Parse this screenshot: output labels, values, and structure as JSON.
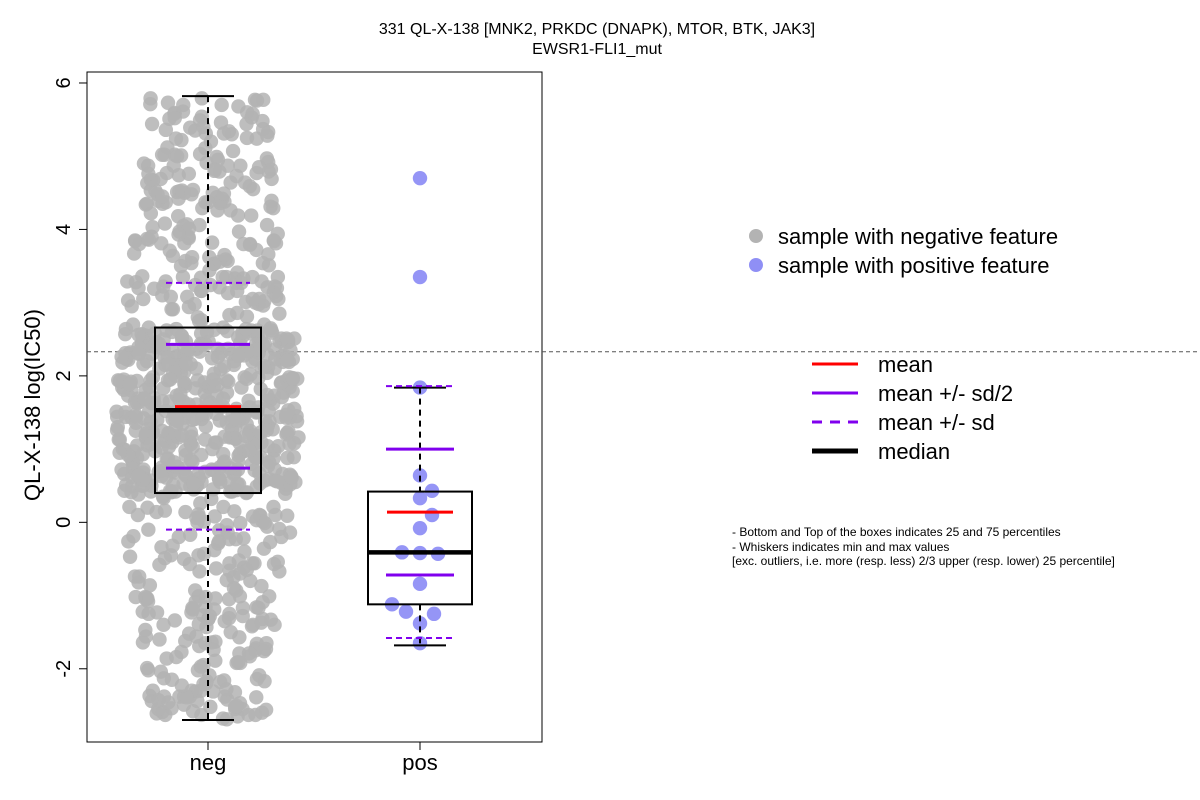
{
  "chart_data": {
    "type": "box-beeswarm",
    "title": "331 QL-X-138 [MNK2, PRKDC (DNAPK), MTOR, BTK, JAK3]",
    "subtitle": "EWSR1-FLI1_mut",
    "xlabel": "",
    "ylabel": "QL-X-138 log(IC50)",
    "categories": [
      "neg",
      "pos"
    ],
    "ylim": [
      -3,
      6.15
    ],
    "yticks": [
      -2,
      0,
      2,
      4,
      6
    ],
    "ytick_labels": [
      "-2",
      "0",
      "2",
      "4",
      "6"
    ],
    "reference_line_y": 2.33,
    "groups": [
      {
        "name": "neg",
        "color": "#b3b3b3",
        "n": 900,
        "stats": {
          "min": -2.7,
          "q1": 0.4,
          "median": 1.53,
          "q3": 2.66,
          "max": 5.82,
          "mean": 1.58,
          "mean_minus_half_sd": 0.74,
          "mean_plus_half_sd": 2.43,
          "mean_minus_sd": -0.1,
          "mean_plus_sd": 3.27
        },
        "points": []
      },
      {
        "name": "pos",
        "color": "#8f8ff5",
        "stats": {
          "min": -1.68,
          "q1": -1.12,
          "median": -0.41,
          "q3": 0.42,
          "max": 1.84,
          "mean": 0.14,
          "mean_minus_half_sd": -0.72,
          "mean_plus_half_sd": 1.0,
          "mean_minus_sd": -1.58,
          "mean_plus_sd": 1.86
        },
        "points": [
          4.7,
          3.35,
          1.84,
          0.64,
          0.43,
          0.33,
          0.1,
          -0.08,
          -0.41,
          -0.42,
          -0.43,
          -0.84,
          -1.12,
          -1.22,
          -1.25,
          -1.38,
          -1.65
        ]
      }
    ],
    "legend_points": [
      {
        "label": "sample with negative feature",
        "color": "#b3b3b3"
      },
      {
        "label": "sample with positive feature",
        "color": "#8f8ff5"
      }
    ],
    "legend_lines": [
      {
        "label": "mean",
        "color": "#ff0000",
        "style": "solid"
      },
      {
        "label": "mean +/- sd/2",
        "color": "#8000ee",
        "style": "solid"
      },
      {
        "label": "mean +/- sd",
        "color": "#8000ee",
        "style": "dashed"
      },
      {
        "label": "median",
        "color": "#000000",
        "style": "solid-thick"
      }
    ]
  },
  "notes": [
    "- Bottom and Top of the boxes indicates 25 and 75 percentiles",
    "- Whiskers indicates min and max values",
    "[exc. outliers, i.e. more (resp. less) 2/3 upper (resp. lower) 25 percentile]"
  ]
}
